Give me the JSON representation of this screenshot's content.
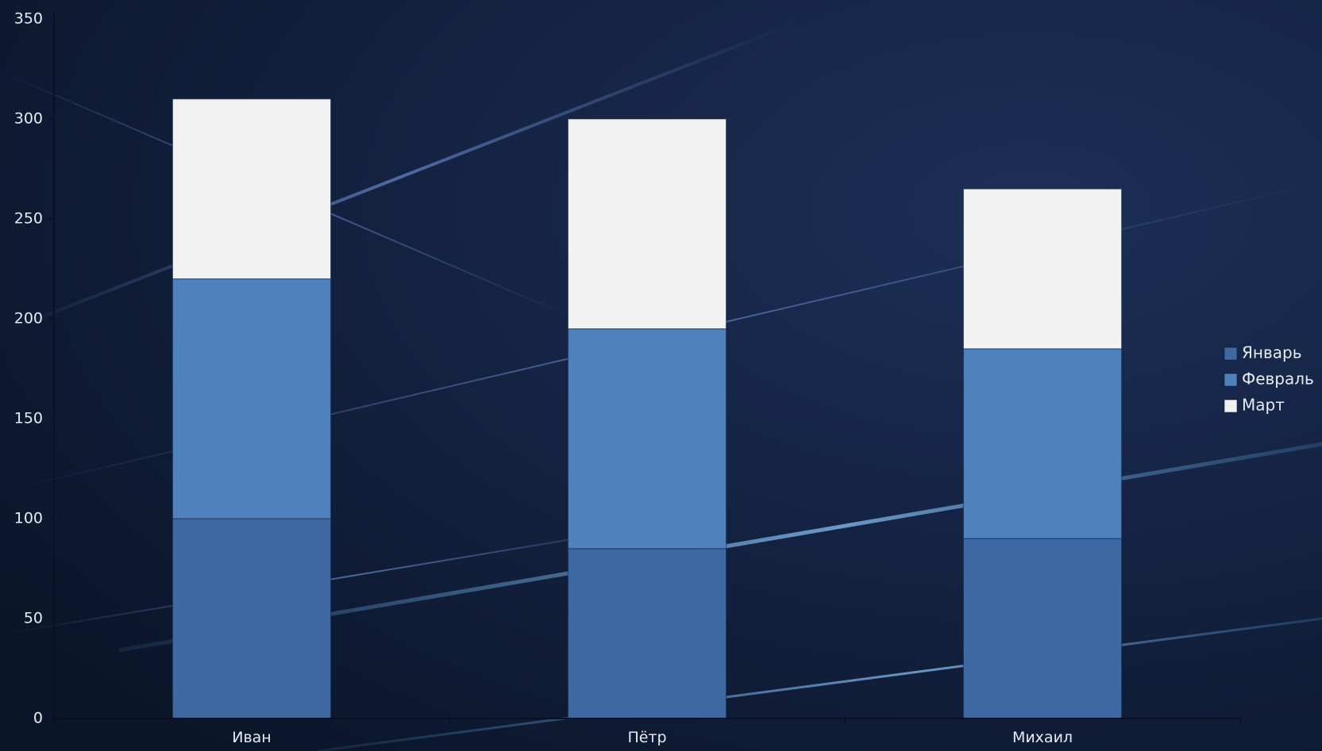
{
  "chart_data": {
    "type": "bar",
    "stacked": true,
    "title": "",
    "xlabel": "",
    "ylabel": "",
    "categories": [
      "Иван",
      "Пётр",
      "Михаил"
    ],
    "series": [
      {
        "name": "Январь",
        "values": [
          100,
          85,
          90
        ],
        "color": "#3d6aa3"
      },
      {
        "name": "Февраль",
        "values": [
          120,
          110,
          95
        ],
        "color": "#4f81bd"
      },
      {
        "name": "Март",
        "values": [
          90,
          105,
          80
        ],
        "color": "#f2f2f2"
      }
    ],
    "ylim": [
      0,
      350
    ],
    "yticks": [
      0,
      50,
      100,
      150,
      200,
      250,
      300,
      350
    ],
    "grid": false,
    "legend": "right"
  }
}
